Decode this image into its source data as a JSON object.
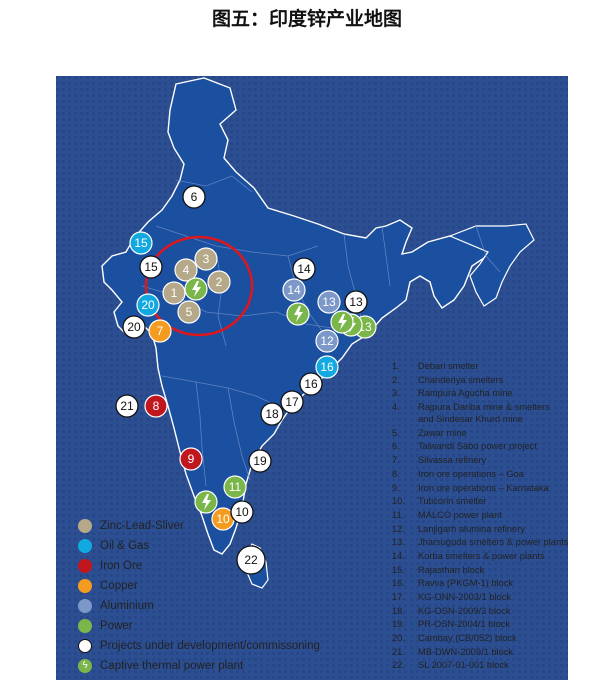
{
  "title": "图五：印度锌产业地图",
  "colors": {
    "map_fill": "#1b4fa0",
    "background": "#284a8c",
    "zinc": "#b5a98a",
    "oil_gas": "#12a9e0",
    "iron": "#c0161d",
    "copper": "#f39c1f",
    "aluminium": "#7b98c8",
    "power": "#7ab64a",
    "highlight_ring": "#e0161d"
  },
  "legend": [
    {
      "key": "zinc",
      "label": "Zinc-Lead-Sliver",
      "icon": "filled-circle"
    },
    {
      "key": "oil_gas",
      "label": "Oil & Gas",
      "icon": "filled-circle"
    },
    {
      "key": "iron",
      "label": "Iron Ore",
      "icon": "filled-circle"
    },
    {
      "key": "copper",
      "label": "Copper",
      "icon": "filled-circle"
    },
    {
      "key": "aluminium",
      "label": "Aluminium",
      "icon": "filled-circle"
    },
    {
      "key": "power",
      "label": "Power",
      "icon": "filled-circle"
    },
    {
      "key": "development",
      "label": "Projects under development/commissoning",
      "icon": "outline-circle"
    },
    {
      "key": "captive",
      "label": "Captive thermal power plant",
      "icon": "lightning-icon"
    }
  ],
  "markers": [
    {
      "label": "1",
      "type": "zinc"
    },
    {
      "label": "2",
      "type": "zinc"
    },
    {
      "label": "3",
      "type": "zinc"
    },
    {
      "label": "4",
      "type": "zinc"
    },
    {
      "label": "5",
      "type": "zinc"
    },
    {
      "label": "",
      "type": "captive"
    },
    {
      "label": "6",
      "type": "development"
    },
    {
      "label": "7",
      "type": "copper"
    },
    {
      "label": "8",
      "type": "iron"
    },
    {
      "label": "9",
      "type": "iron"
    },
    {
      "label": "10",
      "type": "copper"
    },
    {
      "label": "10",
      "type": "development"
    },
    {
      "label": "11",
      "type": "power"
    },
    {
      "label": "",
      "type": "captive"
    },
    {
      "label": "12",
      "type": "aluminium"
    },
    {
      "label": "13",
      "type": "aluminium"
    },
    {
      "label": "13",
      "type": "power"
    },
    {
      "label": "13",
      "type": "development"
    },
    {
      "label": "",
      "type": "captive"
    },
    {
      "label": "",
      "type": "captive"
    },
    {
      "label": "14",
      "type": "aluminium"
    },
    {
      "label": "14",
      "type": "development"
    },
    {
      "label": "",
      "type": "captive"
    },
    {
      "label": "15",
      "type": "oil_gas"
    },
    {
      "label": "15",
      "type": "development"
    },
    {
      "label": "16",
      "type": "oil_gas"
    },
    {
      "label": "16",
      "type": "development"
    },
    {
      "label": "17",
      "type": "development"
    },
    {
      "label": "18",
      "type": "development"
    },
    {
      "label": "19",
      "type": "development"
    },
    {
      "label": "20",
      "type": "oil_gas"
    },
    {
      "label": "20",
      "type": "development"
    },
    {
      "label": "21",
      "type": "development"
    },
    {
      "label": "22",
      "type": "development"
    }
  ],
  "project_list": [
    {
      "num": "1.",
      "text": "Debari smelter"
    },
    {
      "num": "2.",
      "text": "Chanderiya smelters"
    },
    {
      "num": "3.",
      "text": "Rampura Agucha mine"
    },
    {
      "num": "4.",
      "text": "Rajpura Dariba mine & smelters\nand Sindesar Khurd mine"
    },
    {
      "num": "5.",
      "text": "Zawar mine"
    },
    {
      "num": "6.",
      "text": "Talwandi Sabo power project"
    },
    {
      "num": "7.",
      "text": "Silvassa refinery"
    },
    {
      "num": "8.",
      "text": "Iron ore operations – Goa"
    },
    {
      "num": "9.",
      "text": "Iron ore operations – Karnataka"
    },
    {
      "num": "10.",
      "text": "Tuticorin smelter"
    },
    {
      "num": "11.",
      "text": "MALCO power plant"
    },
    {
      "num": "12.",
      "text": "Lanjigarh alumina refinery"
    },
    {
      "num": "13.",
      "text": "Jharsuguda smelters & power plants"
    },
    {
      "num": "14.",
      "text": "Korba smelters & power plants"
    },
    {
      "num": "15.",
      "text": "Rajasthan block"
    },
    {
      "num": "16.",
      "text": "Ravva (PKGM-1) block"
    },
    {
      "num": "17.",
      "text": "KG-ONN-2003/1 block"
    },
    {
      "num": "18.",
      "text": "KG-OSN-2009/3 block"
    },
    {
      "num": "19.",
      "text": "PR-OSN-2004/1 block"
    },
    {
      "num": "20.",
      "text": "Cambay (CB/052) block"
    },
    {
      "num": "21.",
      "text": "MB-DWN-2009/1 block"
    },
    {
      "num": "22.",
      "text": "SL 2007-01-001 block"
    }
  ]
}
